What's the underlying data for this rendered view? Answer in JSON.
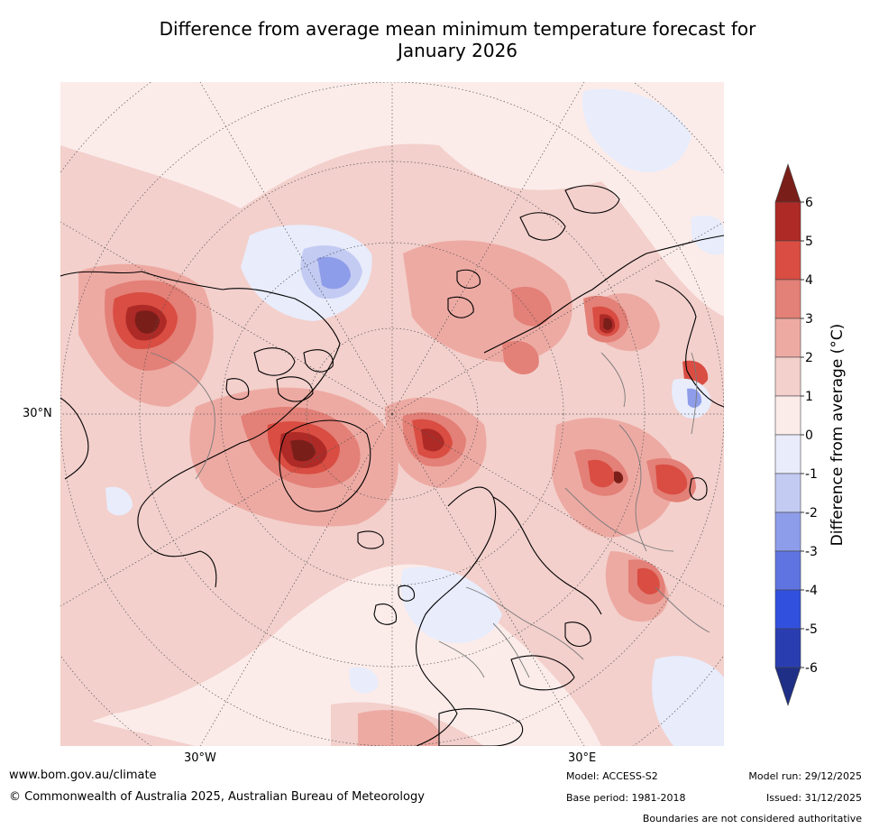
{
  "title": "Difference from average mean minimum temperature forecast for January 2026",
  "title_line1": "Difference from average mean minimum temperature forecast for",
  "title_line2": "January 2026",
  "map": {
    "lat_label": "30°N",
    "lon_labels": [
      "30°W",
      "30°E"
    ],
    "projection": "north-polar-stereographic"
  },
  "colorbar": {
    "label": "Difference from average (°C)",
    "ticks": [
      "6",
      "5",
      "4",
      "3",
      "2",
      "1",
      "0",
      "-1",
      "-2",
      "-3",
      "-4",
      "-5",
      "-6"
    ],
    "colors": [
      "#7a1e1a",
      "#ae2a26",
      "#d94d42",
      "#e38077",
      "#edaaa3",
      "#f3d0cc",
      "#fbecea",
      "#e8ecfb",
      "#c3cbf3",
      "#8e9de9",
      "#5f74e0",
      "#3150de",
      "#2a3db0",
      "#1f2f85"
    ]
  },
  "footer": {
    "website": "www.bom.gov.au/climate",
    "copyright": "© Commonwealth of Australia 2025, Australian Bureau of Meteorology",
    "model": "Model: ACCESS-S2",
    "base_period": "Base period: 1981-2018",
    "model_run": "Model run: 29/12/2025",
    "issued": "Issued: 31/12/2025",
    "disclaimer": "Boundaries are not considered authoritative"
  }
}
